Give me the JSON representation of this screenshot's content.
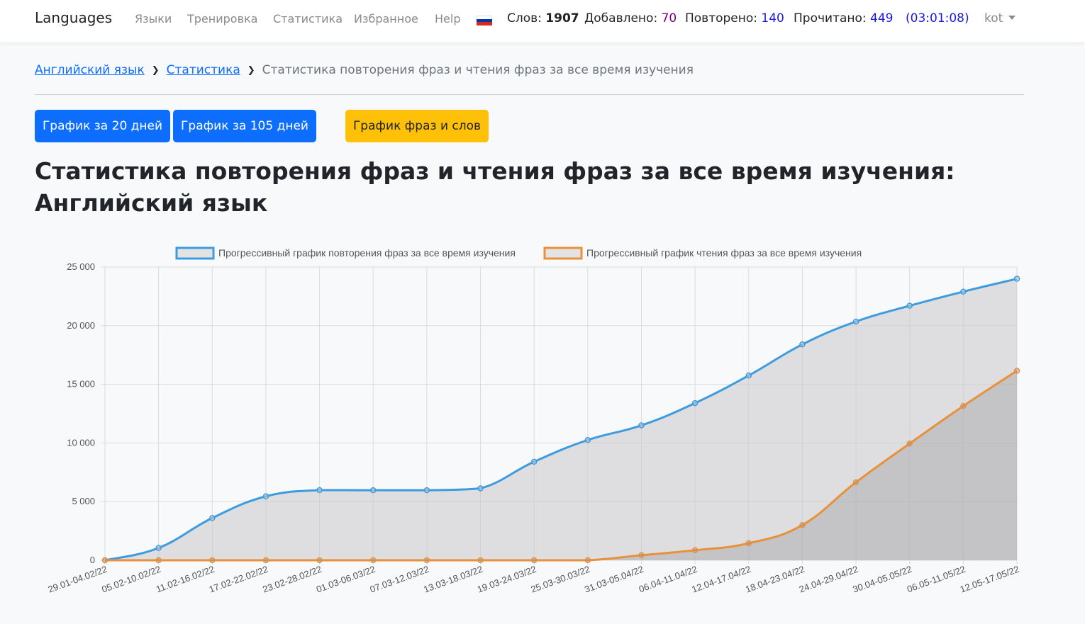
{
  "nav": {
    "brand": "Languages",
    "links": [
      "Языки",
      "Тренировка",
      "Статистика",
      "Избранное",
      "Help"
    ],
    "stats": {
      "words_label": "Слов:",
      "words_value": "1907",
      "added_label": "Добавлено:",
      "added_value": "70",
      "repeated_label": "Повторено:",
      "repeated_value": "140",
      "read_label": "Прочитано:",
      "read_value": "449",
      "timer_open": "(",
      "timer_value": "03:01:08",
      "timer_close": ")"
    },
    "user": "kot",
    "flag_icon": "russian-flag-icon"
  },
  "breadcrumb": {
    "items": [
      "Английский язык",
      "Статистика"
    ],
    "current": "Статистика повторения фраз и чтения фраз за все время изучения"
  },
  "buttons": {
    "days20": "График за 20 дней",
    "days105": "График за 105 дней",
    "phrases_words": "График фраз и слов"
  },
  "page": {
    "title": "Статистика повторения фраз и чтения фраз за все время изучения: Английский язык"
  },
  "colors": {
    "primary": "#0d6efd",
    "warning": "#ffc107",
    "series_repeat": "#3d9ce0",
    "series_read": "#e8903a"
  },
  "chart_data": {
    "type": "line",
    "categories": [
      "29.01-04.02/22",
      "05.02-10.02/22",
      "11.02-16.02/22",
      "17.02-22.02/22",
      "23.02-28.02/22",
      "01.03-06.03/22",
      "07.03-12.03/22",
      "13.03-18.03/22",
      "19.03-24.03/22",
      "25.03-30.03/22",
      "31.03-05.04/22",
      "06.04-11.04/22",
      "12.04-17.04/22",
      "18.04-23.04/22",
      "24.04-29.04/22",
      "30.04-05.05/22",
      "06.05-11.05/22",
      "12.05-17.05/22"
    ],
    "series": [
      {
        "name": "Прогрессивный график повторения фраз за все время изучения",
        "values": [
          0,
          1050,
          3600,
          5450,
          5980,
          5970,
          5970,
          6130,
          8400,
          10250,
          11500,
          13400,
          15750,
          18400,
          20350,
          21700,
          22900,
          24000
        ]
      },
      {
        "name": "Прогрессивный график чтения фраз за все время изучения",
        "values": [
          0,
          0,
          0,
          0,
          0,
          0,
          0,
          0,
          0,
          0,
          430,
          850,
          1450,
          3000,
          6650,
          9950,
          13150,
          16150
        ]
      }
    ],
    "ylim": [
      0,
      25000
    ],
    "yticks": [
      "0",
      "5 000",
      "10 000",
      "15 000",
      "20 000",
      "25 000"
    ],
    "grid": true,
    "legend": "top"
  }
}
